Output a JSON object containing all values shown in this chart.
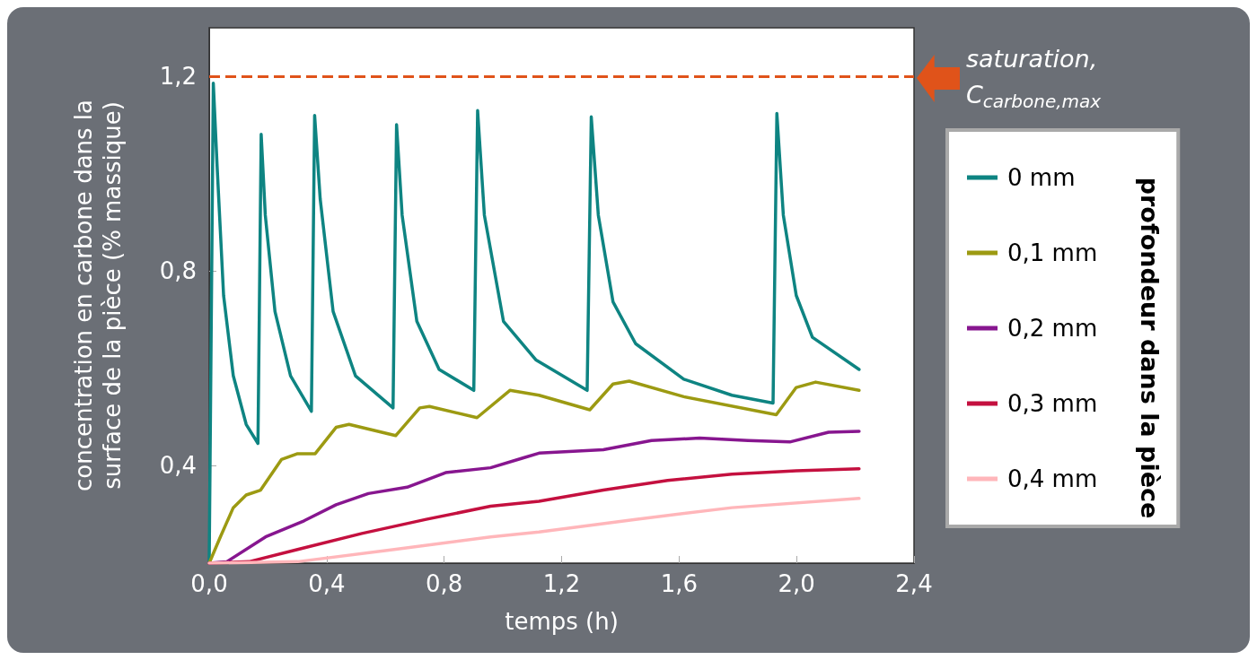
{
  "chart_data": {
    "type": "line",
    "xlabel": "temps (h)",
    "ylabel": "concentration en carbone dans la\nsurface de la pièce (% massique)",
    "legend_title": "profondeur dans la pièce",
    "xlim": [
      0,
      2.4
    ],
    "xticks": [
      {
        "value": 0,
        "label": "0,0"
      },
      {
        "value": 0.4,
        "label": "0,4"
      },
      {
        "value": 0.8,
        "label": "0,8"
      },
      {
        "value": 1.2,
        "label": "1,2"
      },
      {
        "value": 1.6,
        "label": "1,6"
      },
      {
        "value": 2.0,
        "label": "2,0"
      },
      {
        "value": 2.4,
        "label": "2,4"
      }
    ],
    "ylim": [
      0.2,
      1.3
    ],
    "yticks": [
      {
        "value": 0.4,
        "label": "0,4"
      },
      {
        "value": 0.8,
        "label": "0,8"
      },
      {
        "value": 1.2,
        "label": "1,2"
      }
    ],
    "legend": "right",
    "marker": "none",
    "line_style": "solid",
    "ref_lines": [
      {
        "axis": "y",
        "value": 1.2,
        "label": "saturation, C$_{carbone,max}$",
        "color": "#e0531a",
        "line_style": "dashed"
      }
    ],
    "series": [
      {
        "name": "0 mm",
        "color": "#0e8482",
        "x": [
          0,
          0.014,
          0.027,
          0.049,
          0.082,
          0.126,
          0.166,
          0.177,
          0.191,
          0.224,
          0.277,
          0.348,
          0.359,
          0.378,
          0.422,
          0.498,
          0.626,
          0.638,
          0.657,
          0.707,
          0.783,
          0.901,
          0.914,
          0.937,
          1.002,
          1.112,
          1.287,
          1.301,
          1.325,
          1.375,
          1.452,
          1.616,
          1.78,
          1.92,
          1.933,
          1.955,
          1.999,
          2.054,
          2.213
        ],
        "values": [
          0.2,
          1.186,
          1.015,
          0.75,
          0.585,
          0.485,
          0.446,
          1.081,
          0.915,
          0.717,
          0.585,
          0.512,
          1.12,
          0.948,
          0.717,
          0.585,
          0.519,
          1.101,
          0.915,
          0.697,
          0.598,
          0.555,
          1.13,
          0.915,
          0.697,
          0.618,
          0.555,
          1.117,
          0.915,
          0.737,
          0.651,
          0.578,
          0.545,
          0.529,
          1.124,
          0.915,
          0.75,
          0.664,
          0.598
        ]
      },
      {
        "name": "0,1 mm",
        "color": "#9c9a12",
        "x": [
          0,
          0.038,
          0.082,
          0.126,
          0.175,
          0.246,
          0.301,
          0.361,
          0.432,
          0.476,
          0.635,
          0.717,
          0.75,
          0.912,
          1.024,
          1.123,
          1.296,
          1.375,
          1.43,
          1.616,
          1.931,
          1.999,
          2.065,
          2.213
        ],
        "values": [
          0.2,
          0.254,
          0.314,
          0.34,
          0.35,
          0.413,
          0.425,
          0.425,
          0.479,
          0.485,
          0.462,
          0.519,
          0.522,
          0.499,
          0.555,
          0.545,
          0.515,
          0.568,
          0.574,
          0.542,
          0.505,
          0.561,
          0.572,
          0.555
        ]
      },
      {
        "name": "0,2 mm",
        "color": "#87168f",
        "x": [
          0,
          0.06,
          0.192,
          0.323,
          0.432,
          0.542,
          0.674,
          0.805,
          0.958,
          1.068,
          1.123,
          1.342,
          1.506,
          1.67,
          1.835,
          1.977,
          2.109,
          2.213
        ],
        "values": [
          0.2,
          0.203,
          0.254,
          0.287,
          0.32,
          0.343,
          0.356,
          0.386,
          0.396,
          0.416,
          0.426,
          0.433,
          0.452,
          0.457,
          0.452,
          0.449,
          0.469,
          0.471
        ]
      },
      {
        "name": "0,3 mm",
        "color": "#c4103f",
        "x": [
          0,
          0.136,
          0.301,
          0.52,
          0.739,
          0.958,
          1.123,
          1.342,
          1.561,
          1.78,
          1.999,
          2.213
        ],
        "values": [
          0.2,
          0.203,
          0.228,
          0.261,
          0.29,
          0.317,
          0.327,
          0.35,
          0.37,
          0.383,
          0.39,
          0.394
        ]
      },
      {
        "name": "0,4 mm",
        "color": "#ffb6ba",
        "x": [
          0,
          0.301,
          0.63,
          0.958,
          1.123,
          1.452,
          1.78,
          2.213
        ],
        "values": [
          0.2,
          0.203,
          0.228,
          0.254,
          0.264,
          0.29,
          0.314,
          0.333
        ]
      }
    ]
  }
}
